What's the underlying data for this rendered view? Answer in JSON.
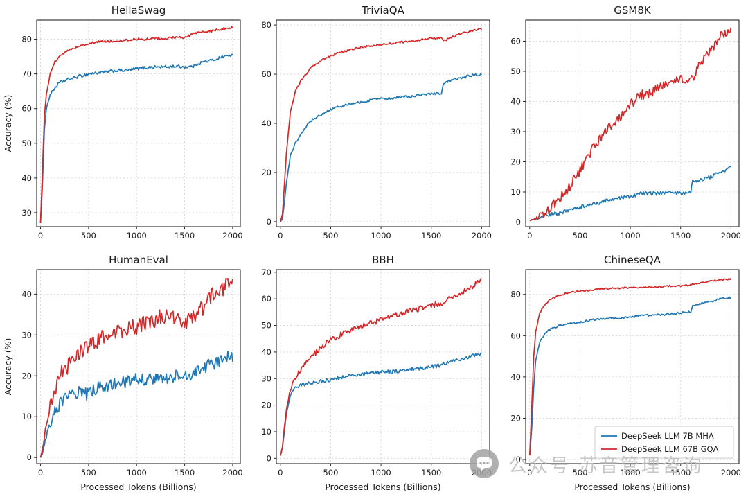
{
  "page": {
    "background": "#ffffff"
  },
  "watermark": {
    "text": "公众号 苏音管理咨询",
    "logo": "wechat-chat-icon",
    "color": "#bdbdbd"
  },
  "chart_data": [
    {
      "type": "line",
      "title": "HellaSwag",
      "xlabel": "Processed Tokens (Billions)",
      "ylabel": "Accuracy (%)",
      "show_xlabel": false,
      "show_ylabel": true,
      "legend": false,
      "grid": true,
      "xlim": [
        -40,
        2080
      ],
      "ylim": [
        26,
        85.5
      ],
      "xticks": [
        0,
        500,
        1000,
        1500,
        2000
      ],
      "yticks": [
        30,
        40,
        50,
        60,
        70,
        80
      ],
      "x": [
        0,
        20,
        40,
        60,
        100,
        150,
        200,
        300,
        400,
        500,
        600,
        700,
        800,
        900,
        1000,
        1100,
        1200,
        1300,
        1400,
        1500,
        1600,
        1620,
        1700,
        1800,
        1900,
        2000
      ],
      "series": [
        {
          "name": "DeepSeek LLM 7B MHA",
          "color": "#1f77b4",
          "noise": 0.45,
          "y": [
            27,
            38,
            54,
            60,
            64,
            66,
            67.5,
            68.5,
            69.3,
            70,
            70.3,
            70.6,
            71,
            71,
            71.5,
            71.8,
            72,
            72,
            72.2,
            72,
            72.2,
            72.8,
            73.5,
            74,
            75,
            75.5
          ]
        },
        {
          "name": "DeepSeek LLM 67B GQA",
          "color": "#d62728",
          "noise": 0.35,
          "y": [
            27,
            42,
            58,
            64,
            70,
            73.5,
            75,
            77,
            78,
            78.7,
            79.3,
            79.5,
            79.3,
            79.8,
            80,
            80,
            80.3,
            80.2,
            80.5,
            80.5,
            81.5,
            81.8,
            82,
            82.5,
            83,
            83.5
          ]
        }
      ]
    },
    {
      "type": "line",
      "title": "TriviaQA",
      "xlabel": "Processed Tokens (Billions)",
      "ylabel": "Accuracy (%)",
      "show_xlabel": false,
      "show_ylabel": false,
      "legend": false,
      "grid": true,
      "xlim": [
        -40,
        2080
      ],
      "ylim": [
        -2,
        82
      ],
      "xticks": [
        0,
        500,
        1000,
        1500,
        2000
      ],
      "yticks": [
        0,
        20,
        40,
        60,
        80
      ],
      "x": [
        0,
        20,
        40,
        60,
        100,
        150,
        200,
        300,
        400,
        500,
        600,
        700,
        800,
        900,
        1000,
        1100,
        1200,
        1300,
        1400,
        1500,
        1600,
        1620,
        1700,
        1800,
        1900,
        2000
      ],
      "series": [
        {
          "name": "DeepSeek LLM 7B MHA",
          "color": "#1f77b4",
          "noise": 0.5,
          "y": [
            0,
            1,
            8,
            16,
            27,
            32,
            35.5,
            41,
            43.5,
            45.5,
            47,
            48,
            48.5,
            49.5,
            50,
            50.2,
            50.8,
            51,
            51.5,
            52,
            52,
            56.5,
            57.5,
            58.5,
            59.5,
            60
          ]
        },
        {
          "name": "DeepSeek LLM 67B GQA",
          "color": "#d62728",
          "noise": 0.4,
          "y": [
            0,
            3,
            15,
            28,
            45,
            53,
            57,
            62.5,
            65.5,
            67.5,
            69,
            70,
            71,
            71.5,
            72,
            72.5,
            73,
            73.5,
            74,
            74.5,
            75,
            73.5,
            75,
            76.5,
            77.5,
            78.5
          ]
        }
      ]
    },
    {
      "type": "line",
      "title": "GSM8K",
      "xlabel": "Processed Tokens (Billions)",
      "ylabel": "Accuracy (%)",
      "show_xlabel": false,
      "show_ylabel": false,
      "legend": false,
      "grid": true,
      "xlim": [
        -40,
        2080
      ],
      "ylim": [
        -1.5,
        67
      ],
      "xticks": [
        0,
        500,
        1000,
        1500,
        2000
      ],
      "yticks": [
        0,
        10,
        20,
        30,
        40,
        50,
        60
      ],
      "x": [
        0,
        20,
        40,
        60,
        100,
        150,
        200,
        300,
        400,
        500,
        600,
        700,
        800,
        900,
        1000,
        1100,
        1200,
        1300,
        1400,
        1500,
        1600,
        1620,
        1700,
        1800,
        1900,
        2000
      ],
      "series": [
        {
          "name": "DeepSeek LLM 7B MHA",
          "color": "#1f77b4",
          "noise": 0.6,
          "y": [
            0.5,
            0.7,
            1,
            1,
            1.5,
            2,
            2.5,
            3,
            4,
            5,
            6,
            6.5,
            7.5,
            8,
            8.5,
            9.5,
            9.5,
            9.5,
            10,
            9.5,
            10,
            13.5,
            14,
            15,
            16.5,
            18
          ]
        },
        {
          "name": "DeepSeek LLM 67B GQA",
          "color": "#d62728",
          "noise": 1.6,
          "y": [
            0.5,
            0.8,
            1,
            1.2,
            2,
            3,
            4.5,
            8,
            12,
            17,
            23,
            28,
            32,
            35,
            39,
            42,
            43,
            45,
            47,
            48,
            46.5,
            48,
            53,
            57,
            62,
            63.5
          ]
        }
      ]
    },
    {
      "type": "line",
      "title": "HumanEval",
      "xlabel": "Processed Tokens (Billions)",
      "ylabel": "Accuracy (%)",
      "show_xlabel": true,
      "show_ylabel": true,
      "legend": false,
      "grid": true,
      "xlim": [
        -40,
        2080
      ],
      "ylim": [
        -1.5,
        46
      ],
      "xticks": [
        0,
        500,
        1000,
        1500,
        2000
      ],
      "yticks": [
        0,
        10,
        20,
        30,
        40
      ],
      "x": [
        0,
        20,
        40,
        60,
        100,
        150,
        200,
        300,
        400,
        500,
        600,
        700,
        800,
        900,
        1000,
        1100,
        1200,
        1300,
        1400,
        1500,
        1600,
        1620,
        1700,
        1800,
        1900,
        2000
      ],
      "series": [
        {
          "name": "DeepSeek LLM 7B MHA",
          "color": "#1f77b4",
          "noise": 1.6,
          "y": [
            0,
            1,
            3,
            5,
            8,
            11,
            13,
            15,
            16,
            15.5,
            17,
            17.5,
            18,
            18.5,
            19,
            19,
            19.5,
            19.5,
            20,
            20,
            20.5,
            21,
            22,
            23,
            24.5,
            25
          ]
        },
        {
          "name": "DeepSeek LLM 67B GQA",
          "color": "#d62728",
          "noise": 2.0,
          "y": [
            0,
            2,
            5,
            8,
            13,
            17,
            20,
            23,
            25.5,
            27,
            28.5,
            30,
            30.5,
            31.5,
            32,
            33,
            34,
            34.5,
            34,
            33,
            34.5,
            35,
            37,
            40,
            41.5,
            43.5
          ]
        }
      ]
    },
    {
      "type": "line",
      "title": "BBH",
      "xlabel": "Processed Tokens (Billions)",
      "ylabel": "Accuracy (%)",
      "show_xlabel": true,
      "show_ylabel": false,
      "legend": false,
      "grid": true,
      "xlim": [
        -40,
        2080
      ],
      "ylim": [
        -2,
        71
      ],
      "xticks": [
        0,
        500,
        1000,
        1500,
        2000
      ],
      "yticks": [
        0,
        10,
        20,
        30,
        40,
        50,
        60,
        70
      ],
      "x": [
        0,
        20,
        40,
        60,
        100,
        150,
        200,
        300,
        400,
        500,
        600,
        700,
        800,
        900,
        1000,
        1100,
        1200,
        1300,
        1400,
        1500,
        1600,
        1620,
        1700,
        1800,
        1900,
        2000
      ],
      "series": [
        {
          "name": "DeepSeek LLM 7B MHA",
          "color": "#1f77b4",
          "noise": 0.7,
          "y": [
            1,
            4,
            10,
            17,
            24,
            26.5,
            27.5,
            28.5,
            29,
            29.5,
            30.5,
            31,
            31.5,
            32,
            32.5,
            32.5,
            33,
            33.5,
            34,
            34.5,
            35,
            35.5,
            36.5,
            37.5,
            38.5,
            39.5
          ]
        },
        {
          "name": "DeepSeek LLM 67B GQA",
          "color": "#d62728",
          "noise": 1.1,
          "y": [
            1,
            4,
            12,
            18,
            26,
            30,
            33,
            38,
            41.5,
            44.5,
            46.5,
            48,
            49.5,
            51,
            52,
            53.5,
            54.5,
            55.5,
            56.5,
            57.5,
            58,
            58.5,
            60.5,
            62.5,
            64.5,
            67.5
          ]
        }
      ]
    },
    {
      "type": "line",
      "title": "ChineseQA",
      "xlabel": "Processed Tokens (Billions)",
      "ylabel": "Accuracy (%)",
      "show_xlabel": true,
      "show_ylabel": false,
      "legend": true,
      "legend_position": "lower right",
      "grid": true,
      "xlim": [
        -40,
        2080
      ],
      "ylim": [
        -2,
        92
      ],
      "xticks": [
        0,
        500,
        1000,
        1500,
        2000
      ],
      "yticks": [
        0,
        20,
        40,
        60,
        80
      ],
      "x": [
        0,
        20,
        40,
        60,
        100,
        150,
        200,
        300,
        400,
        500,
        600,
        700,
        800,
        900,
        1000,
        1100,
        1200,
        1300,
        1400,
        1500,
        1600,
        1620,
        1700,
        1800,
        1900,
        2000
      ],
      "series": [
        {
          "name": "DeepSeek LLM 7B MHA",
          "color": "#1f77b4",
          "noise": 0.5,
          "y": [
            2,
            15,
            35,
            48,
            57,
            61,
            63,
            65,
            66,
            66.5,
            67.5,
            68,
            68.5,
            68.5,
            69,
            69.5,
            70,
            70,
            70.5,
            71,
            71.5,
            74.5,
            75.5,
            76.5,
            78,
            78.5
          ]
        },
        {
          "name": "DeepSeek LLM 67B GQA",
          "color": "#d62728",
          "noise": 0.4,
          "y": [
            2,
            25,
            50,
            62,
            71,
            75,
            77.5,
            79.5,
            81,
            81.5,
            82,
            82.5,
            83,
            83,
            83.2,
            83.5,
            83.5,
            83.8,
            84,
            84,
            84.5,
            85,
            85.5,
            86.5,
            87,
            87.5
          ]
        }
      ]
    }
  ]
}
